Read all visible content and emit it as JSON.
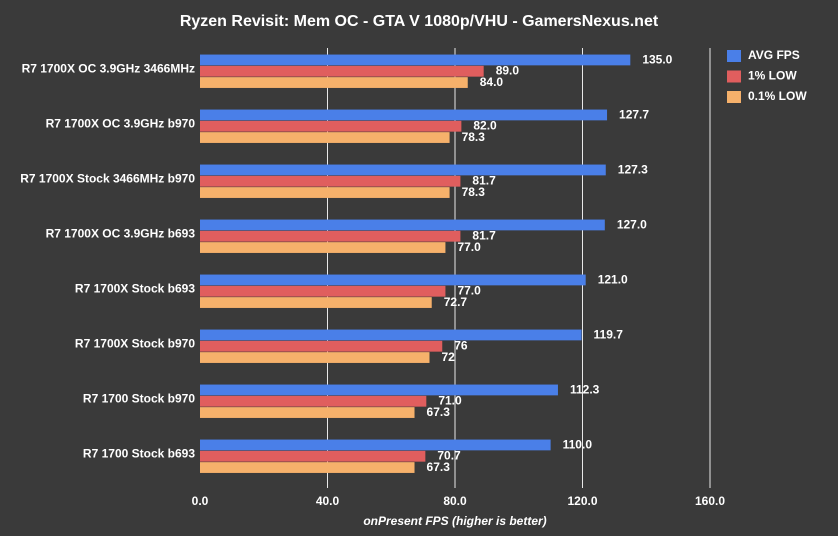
{
  "chart_data": {
    "type": "hbar",
    "title": "Ryzen Revisit: Mem OC - GTA V 1080p/VHU - GamersNexus.net",
    "x_label": "onPresent FPS (higher is better)",
    "categories": [
      "R7 1700X OC 3.9GHz 3466MHz",
      "R7 1700X OC 3.9GHz b970",
      "R7 1700X Stock 3466MHz b970",
      "R7 1700X OC 3.9GHz b693",
      "R7 1700X Stock b693",
      "R7 1700X Stock b970",
      "R7 1700 Stock b970",
      "R7 1700 Stock b693"
    ],
    "series": [
      {
        "name": "AVG FPS",
        "color": "#4a7fe8",
        "values": [
          135.0,
          127.7,
          127.3,
          127.0,
          121.0,
          119.7,
          112.3,
          110.0
        ],
        "value_labels": [
          "135.0",
          "127.7",
          "127.3",
          "127.0",
          "121.0",
          "119.7",
          "112.3",
          "110.0"
        ]
      },
      {
        "name": "1% LOW",
        "color": "#e05e5e",
        "values": [
          89.0,
          82.0,
          81.7,
          81.7,
          77.0,
          76,
          71.0,
          70.7
        ],
        "value_labels": [
          "89.0",
          "82.0",
          "81.7",
          "81.7",
          "77.0",
          "76",
          "71.0",
          "70.7"
        ]
      },
      {
        "name": "0.1% LOW",
        "color": "#f6b16b",
        "values": [
          84.0,
          78.3,
          78.3,
          77.0,
          72.7,
          72,
          67.3,
          67.3
        ],
        "value_labels": [
          "84.0",
          "78.3",
          "78.3",
          "77.0",
          "72.7",
          "72",
          "67.3",
          "67.3"
        ]
      }
    ],
    "xlim": [
      0,
      160
    ],
    "xticks": [
      {
        "value": 0,
        "label": "0.0"
      },
      {
        "value": 40,
        "label": "40.0"
      },
      {
        "value": 80,
        "label": "80.0"
      },
      {
        "value": 120,
        "label": "120.0"
      },
      {
        "value": 160,
        "label": "160.0"
      }
    ],
    "grid": true,
    "legend": "top-right"
  }
}
